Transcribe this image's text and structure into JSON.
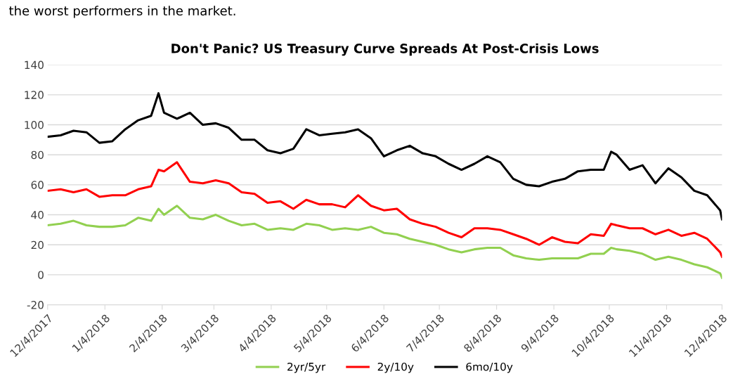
{
  "chart_data": {
    "type": "line",
    "title": "Don't Panic? US Treasury Curve Spreads At Post-Crisis Lows",
    "annotations": [
      "the worst performers in the market."
    ],
    "x": [
      "2017-12-04",
      "2017-12-11",
      "2017-12-18",
      "2017-12-25",
      "2018-01-01",
      "2018-01-08",
      "2018-01-15",
      "2018-01-22",
      "2018-01-29",
      "2018-02-02",
      "2018-02-05",
      "2018-02-12",
      "2018-02-19",
      "2018-02-26",
      "2018-03-05",
      "2018-03-12",
      "2018-03-19",
      "2018-03-26",
      "2018-04-02",
      "2018-04-09",
      "2018-04-16",
      "2018-04-23",
      "2018-04-30",
      "2018-05-07",
      "2018-05-14",
      "2018-05-21",
      "2018-05-28",
      "2018-06-04",
      "2018-06-11",
      "2018-06-18",
      "2018-06-25",
      "2018-07-02",
      "2018-07-09",
      "2018-07-16",
      "2018-07-23",
      "2018-07-30",
      "2018-08-06",
      "2018-08-13",
      "2018-08-20",
      "2018-08-27",
      "2018-09-03",
      "2018-09-10",
      "2018-09-17",
      "2018-09-24",
      "2018-10-01",
      "2018-10-05",
      "2018-10-08",
      "2018-10-15",
      "2018-10-22",
      "2018-10-29",
      "2018-11-05",
      "2018-11-12",
      "2018-11-19",
      "2018-11-26",
      "2018-12-03",
      "2018-12-04"
    ],
    "series": [
      {
        "name": "2yr/5yr",
        "color": "#92d050",
        "values": [
          33,
          34,
          36,
          33,
          32,
          32,
          33,
          38,
          36,
          44,
          40,
          46,
          38,
          37,
          40,
          36,
          33,
          34,
          30,
          31,
          30,
          34,
          33,
          30,
          31,
          30,
          32,
          28,
          27,
          24,
          22,
          20,
          17,
          15,
          17,
          18,
          18,
          13,
          11,
          10,
          11,
          11,
          11,
          14,
          14,
          18,
          17,
          16,
          14,
          10,
          12,
          10,
          7,
          5,
          1,
          -2
        ]
      },
      {
        "name": "2y/10y",
        "color": "#ff0000",
        "values": [
          56,
          57,
          55,
          57,
          52,
          53,
          53,
          57,
          59,
          70,
          69,
          75,
          62,
          61,
          63,
          61,
          55,
          54,
          48,
          49,
          44,
          50,
          47,
          47,
          45,
          53,
          46,
          43,
          44,
          37,
          34,
          32,
          28,
          25,
          31,
          31,
          30,
          27,
          24,
          20,
          25,
          22,
          21,
          27,
          26,
          34,
          33,
          31,
          31,
          27,
          30,
          26,
          28,
          24,
          15,
          12
        ]
      },
      {
        "name": "6mo/10y",
        "color": "#000000",
        "values": [
          92,
          93,
          96,
          95,
          88,
          89,
          97,
          103,
          106,
          121,
          108,
          104,
          108,
          100,
          101,
          98,
          90,
          90,
          83,
          81,
          84,
          97,
          93,
          94,
          95,
          97,
          91,
          79,
          83,
          86,
          81,
          79,
          74,
          70,
          74,
          79,
          75,
          64,
          60,
          59,
          62,
          64,
          69,
          70,
          70,
          82,
          80,
          70,
          73,
          61,
          71,
          65,
          56,
          53,
          43,
          37
        ]
      }
    ],
    "xlim": [
      "2017-12-04",
      "2018-12-04"
    ],
    "xticks": [
      {
        "value": "2017-12-04",
        "label": "12/4/2017"
      },
      {
        "value": "2018-01-04",
        "label": "1/4/2018"
      },
      {
        "value": "2018-02-04",
        "label": "2/4/2018"
      },
      {
        "value": "2018-03-04",
        "label": "3/4/2018"
      },
      {
        "value": "2018-04-04",
        "label": "4/4/2018"
      },
      {
        "value": "2018-05-04",
        "label": "5/4/2018"
      },
      {
        "value": "2018-06-04",
        "label": "6/4/2018"
      },
      {
        "value": "2018-07-04",
        "label": "7/4/2018"
      },
      {
        "value": "2018-08-04",
        "label": "8/4/2018"
      },
      {
        "value": "2018-09-04",
        "label": "9/4/2018"
      },
      {
        "value": "2018-10-04",
        "label": "10/4/2018"
      },
      {
        "value": "2018-11-04",
        "label": "11/4/2018"
      },
      {
        "value": "2018-12-04",
        "label": "12/4/2018"
      }
    ],
    "ylim": [
      -20,
      140
    ],
    "yticks": [
      -20,
      0,
      20,
      40,
      60,
      80,
      100,
      120,
      140
    ],
    "grid": "y",
    "legend": "bottom",
    "marker": "none",
    "line_style": "solid"
  }
}
